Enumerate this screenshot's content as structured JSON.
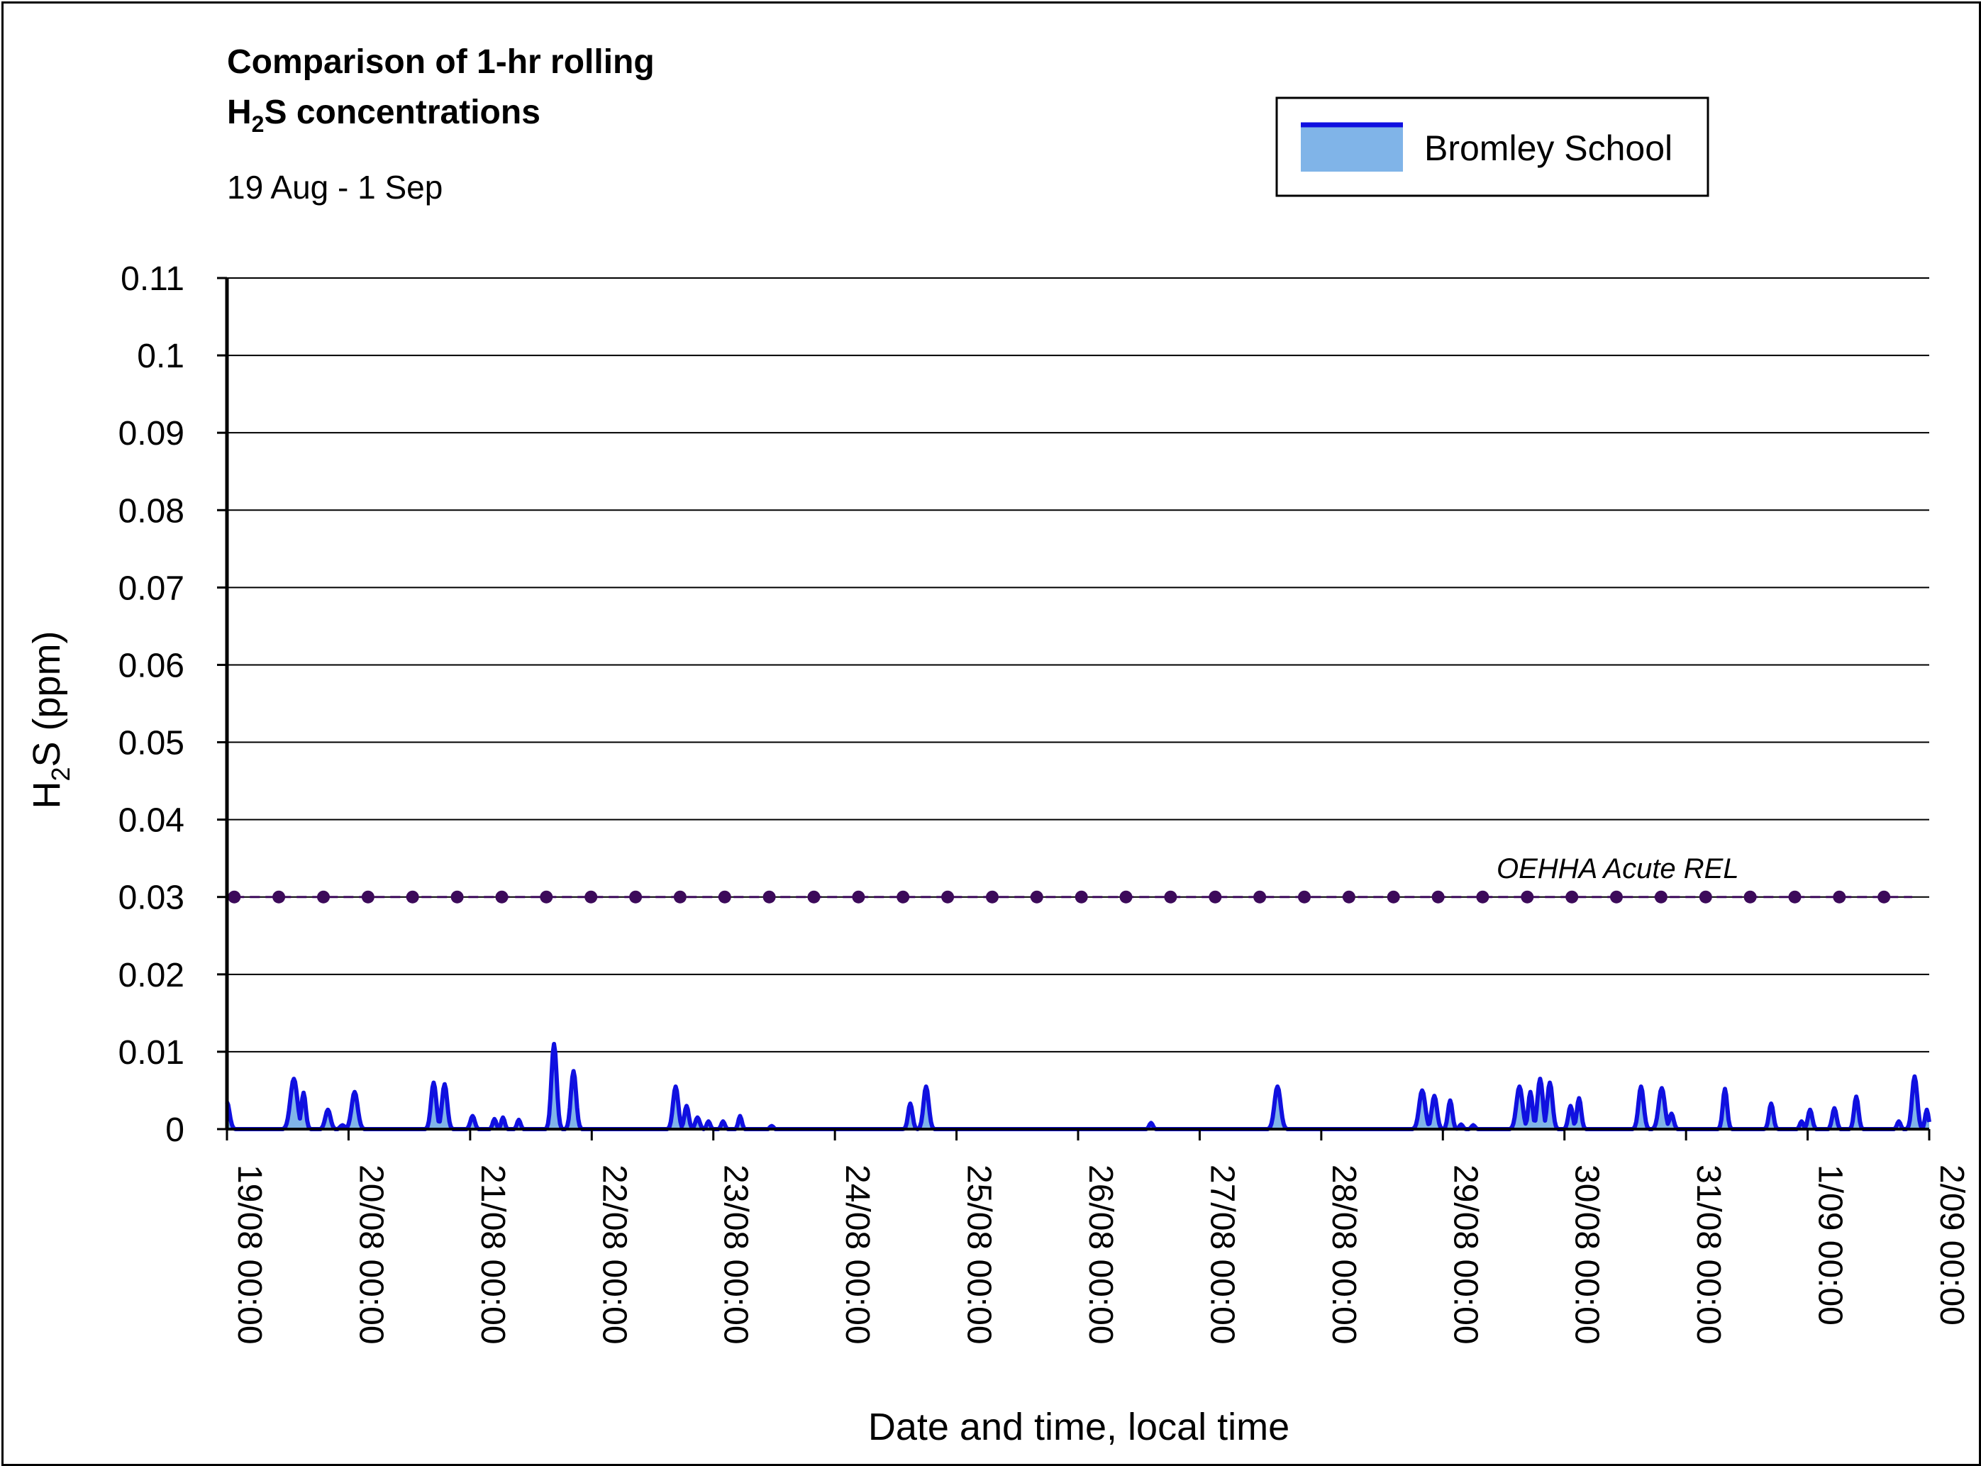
{
  "chart_data": {
    "type": "area",
    "title_line1": "Comparison of 1-hr rolling",
    "title_line2_main": "H",
    "title_line2_sub": "2",
    "title_line2_rest": "S concentrations",
    "subtitle": "19 Aug - 1 Sep",
    "ylabel_main": "H",
    "ylabel_sub": "2",
    "ylabel_rest": "S (ppm)",
    "xlabel": "Date and time, local time",
    "ylim": [
      0,
      0.11
    ],
    "xlim": [
      0,
      14
    ],
    "y_ticks": [
      0,
      0.01,
      0.02,
      0.03,
      0.04,
      0.05,
      0.06,
      0.07,
      0.08,
      0.09,
      0.1,
      0.11
    ],
    "y_tick_labels": [
      "0",
      "0.01",
      "0.02",
      "0.03",
      "0.04",
      "0.05",
      "0.06",
      "0.07",
      "0.08",
      "0.09",
      "0.1",
      "0.11"
    ],
    "x_ticks": [
      0,
      1,
      2,
      3,
      4,
      5,
      6,
      7,
      8,
      9,
      10,
      11,
      12,
      13,
      14
    ],
    "x_tick_labels": [
      "19/08 00:00",
      "20/08 00:00",
      "21/08 00:00",
      "22/08 00:00",
      "23/08 00:00",
      "24/08 00:00",
      "25/08 00:00",
      "26/08 00:00",
      "27/08 00:00",
      "28/08 00:00",
      "29/08 00:00",
      "30/08 00:00",
      "31/08 00:00",
      "1/09 00:00",
      "2/09 00:00"
    ],
    "grid": "horizontal",
    "legend": {
      "position": "top-right",
      "label": "Bromley School"
    },
    "colors": {
      "line": "#1010e0",
      "fill": "#80b4e8",
      "reference": "#3c0a5a",
      "grid": "#000000"
    },
    "reference_line": {
      "label": "OEHHA Acute REL",
      "value": 0.03,
      "marker": "circle"
    },
    "x_unit": "days since 19/08 00:00",
    "series": [
      {
        "name": "Bromley School",
        "peaks": [
          [
            0.0,
            0.0035,
            0.06
          ],
          [
            0.55,
            0.0065,
            0.08
          ],
          [
            0.63,
            0.0047,
            0.05
          ],
          [
            0.83,
            0.0025,
            0.06
          ],
          [
            0.95,
            0.0005,
            0.05
          ],
          [
            1.05,
            0.0048,
            0.07
          ],
          [
            1.7,
            0.006,
            0.06
          ],
          [
            1.79,
            0.0058,
            0.06
          ],
          [
            2.02,
            0.0017,
            0.05
          ],
          [
            2.2,
            0.0013,
            0.04
          ],
          [
            2.27,
            0.0015,
            0.04
          ],
          [
            2.4,
            0.0012,
            0.04
          ],
          [
            2.69,
            0.011,
            0.06
          ],
          [
            2.85,
            0.0075,
            0.06
          ],
          [
            3.69,
            0.0055,
            0.06
          ],
          [
            3.78,
            0.003,
            0.05
          ],
          [
            3.87,
            0.0015,
            0.05
          ],
          [
            3.96,
            0.001,
            0.04
          ],
          [
            4.08,
            0.001,
            0.04
          ],
          [
            4.22,
            0.0017,
            0.04
          ],
          [
            4.48,
            0.0004,
            0.04
          ],
          [
            5.62,
            0.0033,
            0.05
          ],
          [
            5.75,
            0.0055,
            0.06
          ],
          [
            7.6,
            0.0008,
            0.04
          ],
          [
            8.64,
            0.0055,
            0.07
          ],
          [
            9.83,
            0.005,
            0.07
          ],
          [
            9.93,
            0.0043,
            0.06
          ],
          [
            10.06,
            0.0037,
            0.05
          ],
          [
            10.15,
            0.0006,
            0.04
          ],
          [
            10.25,
            0.0005,
            0.04
          ],
          [
            10.63,
            0.0055,
            0.07
          ],
          [
            10.72,
            0.0048,
            0.05
          ],
          [
            10.8,
            0.0065,
            0.06
          ],
          [
            10.88,
            0.006,
            0.06
          ],
          [
            11.05,
            0.003,
            0.05
          ],
          [
            11.12,
            0.004,
            0.05
          ],
          [
            11.63,
            0.0055,
            0.06
          ],
          [
            11.8,
            0.0053,
            0.07
          ],
          [
            11.88,
            0.002,
            0.05
          ],
          [
            12.32,
            0.0052,
            0.05
          ],
          [
            12.7,
            0.0033,
            0.05
          ],
          [
            12.95,
            0.001,
            0.04
          ],
          [
            13.02,
            0.0025,
            0.05
          ],
          [
            13.22,
            0.0027,
            0.05
          ],
          [
            13.4,
            0.0042,
            0.05
          ],
          [
            13.75,
            0.001,
            0.04
          ],
          [
            13.88,
            0.0068,
            0.06
          ],
          [
            13.98,
            0.0025,
            0.04
          ]
        ]
      }
    ]
  }
}
